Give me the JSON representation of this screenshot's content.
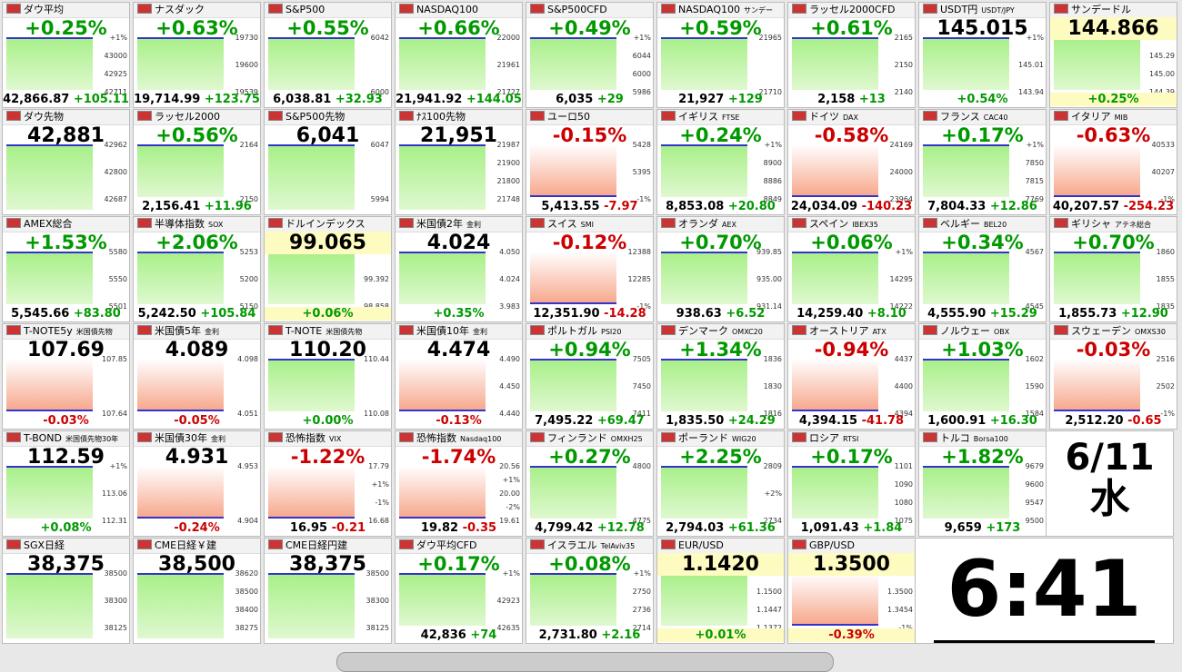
{
  "tiles": [
    {
      "name": "ダウ平均",
      "pct": "+0.25%",
      "price": "42,866.87",
      "diff": "+105.11",
      "labels": [
        "+1%",
        "43000",
        "42925",
        "42711"
      ]
    },
    {
      "name": "ナスダック",
      "pct": "+0.63%",
      "price": "19,714.99",
      "diff": "+123.75",
      "labels": [
        "19730",
        "19600",
        "19539"
      ]
    },
    {
      "name": "S&P500",
      "pct": "+0.55%",
      "price": "6,038.81",
      "diff": "+32.93",
      "labels": [
        "6042",
        "6000"
      ]
    },
    {
      "name": "NASDAQ100",
      "pct": "+0.66%",
      "price": "21,941.92",
      "diff": "+144.05",
      "labels": [
        "22000",
        "21961",
        "21727"
      ]
    },
    {
      "name": "S&P500CFD",
      "pct": "+0.49%",
      "price": "6,035",
      "diff": "+29",
      "labels": [
        "+1%",
        "6044",
        "6000",
        "5986"
      ]
    },
    {
      "name": "NASDAQ100",
      "sub": "サンデー",
      "pct": "+0.59%",
      "price": "21,927",
      "diff": "+129",
      "labels": [
        "21965",
        "21710"
      ]
    },
    {
      "name": "ラッセル2000CFD",
      "pct": "+0.61%",
      "price": "2,158",
      "diff": "+13",
      "labels": [
        "2165",
        "2150",
        "2140"
      ]
    },
    {
      "name": "USDT円",
      "sub": "USDT/JPY",
      "pct": "+0.54%",
      "price": "145.015",
      "labels": [
        "+1%",
        "145.01",
        "143.94"
      ]
    },
    {
      "name": "サンデードル",
      "pct": "+0.25%",
      "price": "144.866",
      "highlight": true,
      "labels": [
        "+1%",
        "145.29",
        "145.00",
        "144.39"
      ]
    },
    {
      "name": "ダウ先物",
      "price": "42,881",
      "labels": [
        "42962",
        "42800",
        "42687"
      ]
    },
    {
      "name": "ラッセル2000",
      "pct": "+0.56%",
      "price": "2,156.41",
      "diff": "+11.96",
      "labels": [
        "2164",
        "2150"
      ]
    },
    {
      "name": "S&P500先物",
      "price": "6,041",
      "labels": [
        "6047",
        "5994"
      ]
    },
    {
      "name": "ﾅｽ100先物",
      "price": "21,951",
      "labels": [
        "21987",
        "21900",
        "21800",
        "21748"
      ]
    },
    {
      "name": "ユーロ50",
      "pct": "-0.15%",
      "price": "5,413.55",
      "diff": "-7.97",
      "labels": [
        "5428",
        "5395",
        "-1%"
      ]
    },
    {
      "name": "イギリス",
      "sub": "FTSE",
      "pct": "+0.24%",
      "price": "8,853.08",
      "diff": "+20.80",
      "labels": [
        "+1%",
        "8900",
        "8886",
        "8849"
      ]
    },
    {
      "name": "ドイツ",
      "sub": "DAX",
      "pct": "-0.58%",
      "price": "24,034.09",
      "diff": "-140.23",
      "labels": [
        "24169",
        "24000",
        "23964"
      ]
    },
    {
      "name": "フランス",
      "sub": "CAC40",
      "pct": "+0.17%",
      "price": "7,804.33",
      "diff": "+12.86",
      "labels": [
        "+1%",
        "7850",
        "7815",
        "7769"
      ]
    },
    {
      "name": "イタリア",
      "sub": "MIB",
      "pct": "-0.63%",
      "price": "40,207.57",
      "diff": "-254.23",
      "labels": [
        "40533",
        "40207",
        "-1%"
      ]
    },
    {
      "name": "AMEX総合",
      "pct": "+1.53%",
      "price": "5,545.66",
      "diff": "+83.80",
      "labels": [
        "5580",
        "5550",
        "5501"
      ]
    },
    {
      "name": "半導体指数",
      "sub": "SOX",
      "pct": "+2.06%",
      "price": "5,242.50",
      "diff": "+105.84",
      "labels": [
        "5253",
        "5200",
        "5150"
      ]
    },
    {
      "name": "ドルインデックス",
      "pct": "+0.06%",
      "price": "99.065",
      "highlight": true,
      "labels": [
        "+1%",
        "99.392",
        "98.858"
      ]
    },
    {
      "name": "米国債2年",
      "sub": "金利",
      "pct": "+0.35%",
      "price": "4.024",
      "labels": [
        "4.050",
        "4.024",
        "3.983"
      ]
    },
    {
      "name": "スイス",
      "sub": "SMI",
      "pct": "-0.12%",
      "price": "12,351.90",
      "diff": "-14.28",
      "labels": [
        "12388",
        "12285",
        "-1%"
      ]
    },
    {
      "name": "オランダ",
      "sub": "AEX",
      "pct": "+0.70%",
      "price": "938.63",
      "diff": "+6.52",
      "labels": [
        "939.85",
        "935.00",
        "931.14"
      ]
    },
    {
      "name": "スペイン",
      "sub": "IBEX35",
      "pct": "+0.06%",
      "price": "14,259.40",
      "diff": "+8.10",
      "labels": [
        "+1%",
        "14295",
        "14222"
      ]
    },
    {
      "name": "ベルギー",
      "sub": "BEL20",
      "pct": "+0.34%",
      "price": "4,555.90",
      "diff": "+15.29",
      "labels": [
        "4567",
        "4545"
      ]
    },
    {
      "name": "ギリシャ",
      "sub": "アテネ総合",
      "pct": "+0.70%",
      "price": "1,855.73",
      "diff": "+12.90",
      "labels": [
        "1860",
        "1855",
        "1835"
      ]
    },
    {
      "name": "T-NOTE5y",
      "sub": "米国債先物",
      "pct": "-0.03%",
      "price": "107.69",
      "labels": [
        "107.85",
        "107.64"
      ]
    },
    {
      "name": "米国債5年",
      "sub": "金利",
      "pct": "-0.05%",
      "price": "4.089",
      "labels": [
        "4.098",
        "4.051"
      ]
    },
    {
      "name": "T-NOTE",
      "sub": "米国債先物",
      "pct": "+0.00%",
      "price": "110.20",
      "labels": [
        "110.44",
        "110.08"
      ]
    },
    {
      "name": "米国債10年",
      "sub": "金利",
      "pct": "-0.13%",
      "price": "4.474",
      "labels": [
        "4.490",
        "4.450",
        "4.440"
      ]
    },
    {
      "name": "ポルトガル",
      "sub": "PSI20",
      "pct": "+0.94%",
      "price": "7,495.22",
      "diff": "+69.47",
      "labels": [
        "7505",
        "7450",
        "7411"
      ]
    },
    {
      "name": "デンマーク",
      "sub": "OMXC20",
      "pct": "+1.34%",
      "price": "1,835.50",
      "diff": "+24.29",
      "labels": [
        "1836",
        "1830",
        "1816"
      ]
    },
    {
      "name": "オーストリア",
      "sub": "ATX",
      "pct": "-0.94%",
      "price": "4,394.15",
      "diff": "-41.78",
      "labels": [
        "4437",
        "4400",
        "4394"
      ]
    },
    {
      "name": "ノルウェー",
      "sub": "OBX",
      "pct": "+1.03%",
      "price": "1,600.91",
      "diff": "+16.30",
      "labels": [
        "1602",
        "1590",
        "1584"
      ]
    },
    {
      "name": "スウェーデン",
      "sub": "OMXS30",
      "pct": "-0.03%",
      "price": "2,512.20",
      "diff": "-0.65",
      "labels": [
        "2516",
        "2502",
        "-1%"
      ]
    },
    {
      "name": "T-BOND",
      "sub": "米国債先物30年",
      "pct": "+0.08%",
      "price": "112.59",
      "labels": [
        "+1%",
        "113.06",
        "112.31"
      ]
    },
    {
      "name": "米国債30年",
      "sub": "金利",
      "pct": "-0.24%",
      "price": "4.931",
      "labels": [
        "4.953",
        "4.904"
      ]
    },
    {
      "name": "恐怖指数",
      "sub": "VIX",
      "pct": "-1.22%",
      "price": "16.95",
      "diff": "-0.21",
      "labels": [
        "17.79",
        "+1%",
        "-1%",
        "16.68"
      ]
    },
    {
      "name": "恐怖指数",
      "sub": "Nasdaq100",
      "pct": "-1.74%",
      "price": "19.82",
      "diff": "-0.35",
      "labels": [
        "20.56",
        "+1%",
        "20.00",
        "-2%",
        "19.61"
      ]
    },
    {
      "name": "フィンランド",
      "sub": "OMXH25",
      "pct": "+0.27%",
      "price": "4,799.42",
      "diff": "+12.78",
      "labels": [
        "4800",
        "4775"
      ]
    },
    {
      "name": "ポーランド",
      "sub": "WIG20",
      "pct": "+2.25%",
      "price": "2,794.03",
      "diff": "+61.36",
      "labels": [
        "2809",
        "+2%",
        "2734"
      ]
    },
    {
      "name": "ロシア",
      "sub": "RTSI",
      "pct": "+0.17%",
      "price": "1,091.43",
      "diff": "+1.84",
      "labels": [
        "1101",
        "1090",
        "1080",
        "1075"
      ]
    },
    {
      "name": "トルコ",
      "sub": "Borsa100",
      "pct": "+1.82%",
      "price": "9,659",
      "diff": "+173",
      "labels": [
        "9679",
        "9600",
        "9547",
        "9500"
      ]
    },
    {
      "name": "SGX日経",
      "price": "38,375",
      "labels": [
        "38500",
        "38300",
        "38125"
      ]
    },
    {
      "name": "CME日経￥建",
      "price": "38,500",
      "labels": [
        "38620",
        "38500",
        "38400",
        "38275"
      ]
    },
    {
      "name": "CME日経円建",
      "price": "38,375",
      "labels": [
        "38500",
        "38300",
        "38125"
      ]
    },
    {
      "name": "ダウ平均CFD",
      "pct": "+0.17%",
      "price": "42,836",
      "diff": "+74",
      "labels": [
        "+1%",
        "42923",
        "42635"
      ]
    },
    {
      "name": "イスラエル",
      "sub": "TelAviv35",
      "pct": "+0.08%",
      "price": "2,731.80",
      "diff": "+2.16",
      "labels": [
        "+1%",
        "2750",
        "2736",
        "2714"
      ]
    },
    {
      "name": "EUR/USD",
      "pct": "+0.01%",
      "price": "1.1420",
      "highlight": true,
      "labels": [
        "+1%",
        "1.1500",
        "1.1447",
        "1.1372"
      ]
    },
    {
      "name": "GBP/USD",
      "pct": "-0.39%",
      "price": "1.3500",
      "highlight": true,
      "labels": [
        "1.3564",
        "1.3500",
        "1.3454",
        "-1%"
      ]
    }
  ],
  "date": {
    "day": "6/11",
    "weekday": "水"
  },
  "clock": "6:41"
}
